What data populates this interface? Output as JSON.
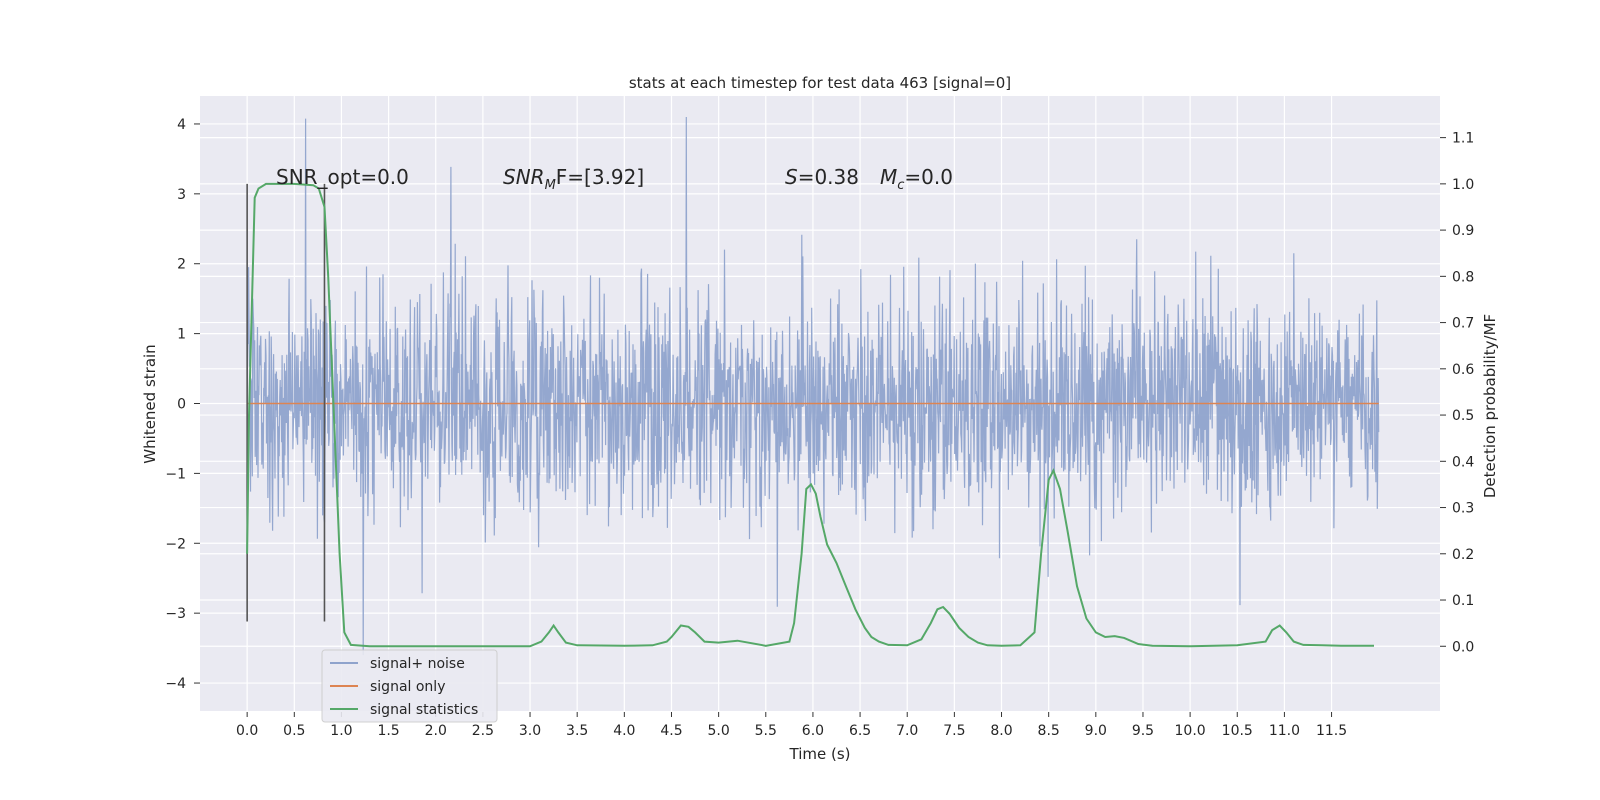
{
  "chart_data": {
    "type": "line",
    "title": "stats at each timestep for test data 463 [signal=0]",
    "xlabel": "Time (s)",
    "ylabel": "Whitened strain",
    "y2label": "Detection probability/MF",
    "xlim": [
      -0.5,
      12.65
    ],
    "ylim": [
      -4.4,
      4.4
    ],
    "y2lim": [
      -0.14,
      1.19
    ],
    "x_ticks": [
      "0.0",
      "0.5",
      "1.0",
      "1.5",
      "2.0",
      "2.5",
      "3.0",
      "3.5",
      "4.0",
      "4.5",
      "5.0",
      "5.5",
      "6.0",
      "6.5",
      "7.0",
      "7.5",
      "8.0",
      "8.5",
      "9.0",
      "9.5",
      "10.0",
      "10.5",
      "11.0",
      "11.5"
    ],
    "y_ticks": [
      "4",
      "3",
      "2",
      "1",
      "0",
      "−1",
      "−2",
      "−3",
      "−4"
    ],
    "y2_ticks": [
      "1.1",
      "1.0",
      "0.9",
      "0.8",
      "0.7",
      "0.6",
      "0.5",
      "0.4",
      "0.3",
      "0.2",
      "0.1",
      "0.0"
    ],
    "grid": true,
    "legend_position": "lower-left",
    "annotations": {
      "snr_opt": "SNR_opt=0.0",
      "snr_mf_label": "SNR",
      "snr_mf_sub": "M",
      "snr_mf_rest": "F=[3.92]",
      "s_label": "S",
      "s_value": "=0.38",
      "mc_label": "M",
      "mc_sub": "c",
      "mc_value": "=0.0"
    },
    "series": [
      {
        "name": "signal+ noise",
        "color": "#8fa3cc",
        "kind": "noise",
        "x_range": [
          0.0,
          12.0
        ],
        "envelope_typical": [
          -1.9,
          1.9
        ],
        "extremes": [
          -3.6,
          4.1
        ]
      },
      {
        "name": "signal only",
        "color": "#dd8452",
        "kind": "flat",
        "x": [
          0.0,
          12.0
        ],
        "y": [
          0.0,
          0.0
        ]
      },
      {
        "name": "signal statistics",
        "color": "#55a868",
        "kind": "line",
        "axis": "right",
        "x": [
          0.0,
          0.02,
          0.08,
          0.12,
          0.2,
          0.3,
          0.5,
          0.7,
          0.76,
          0.82,
          0.86,
          0.92,
          0.98,
          1.03,
          1.1,
          1.3,
          2.0,
          2.5,
          3.0,
          3.12,
          3.2,
          3.25,
          3.3,
          3.38,
          3.5,
          4.0,
          4.3,
          4.45,
          4.5,
          4.6,
          4.68,
          4.75,
          4.85,
          5.0,
          5.2,
          5.5,
          5.75,
          5.8,
          5.88,
          5.93,
          5.98,
          6.03,
          6.08,
          6.15,
          6.25,
          6.35,
          6.45,
          6.55,
          6.62,
          6.7,
          6.8,
          7.0,
          7.15,
          7.25,
          7.32,
          7.38,
          7.45,
          7.55,
          7.65,
          7.75,
          7.85,
          8.0,
          8.2,
          8.35,
          8.42,
          8.5,
          8.55,
          8.62,
          8.7,
          8.8,
          8.9,
          9.0,
          9.1,
          9.2,
          9.3,
          9.45,
          9.6,
          10.0,
          10.5,
          10.8,
          10.87,
          10.95,
          11.02,
          11.1,
          11.2,
          11.4,
          11.6,
          11.95
        ],
        "y": [
          0.2,
          0.5,
          0.97,
          0.99,
          1.0,
          1.0,
          1.0,
          0.997,
          0.99,
          0.95,
          0.8,
          0.5,
          0.2,
          0.03,
          0.003,
          0.0,
          0.0,
          0.0,
          0.0,
          0.01,
          0.03,
          0.045,
          0.03,
          0.008,
          0.002,
          0.001,
          0.002,
          0.01,
          0.02,
          0.045,
          0.042,
          0.03,
          0.01,
          0.008,
          0.012,
          0.001,
          0.01,
          0.05,
          0.2,
          0.34,
          0.35,
          0.33,
          0.28,
          0.22,
          0.18,
          0.13,
          0.08,
          0.04,
          0.02,
          0.01,
          0.003,
          0.002,
          0.015,
          0.05,
          0.08,
          0.085,
          0.07,
          0.04,
          0.02,
          0.008,
          0.002,
          0.001,
          0.002,
          0.03,
          0.2,
          0.36,
          0.38,
          0.34,
          0.25,
          0.13,
          0.06,
          0.03,
          0.02,
          0.022,
          0.018,
          0.005,
          0.001,
          0.0,
          0.002,
          0.01,
          0.035,
          0.045,
          0.03,
          0.01,
          0.003,
          0.002,
          0.001,
          0.001
        ]
      }
    ],
    "vlines": [
      0.0,
      0.82
    ]
  }
}
